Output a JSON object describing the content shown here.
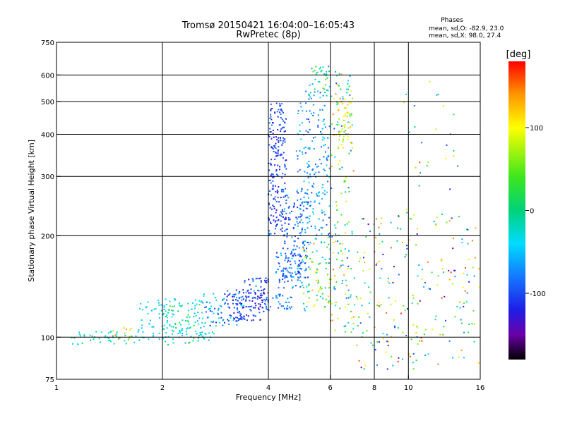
{
  "chart_data": {
    "type": "scatter",
    "title": "Tromsø 20150421 16:04:00–16:05:43",
    "subtitle": "RwPretec (8p)",
    "stats": {
      "heading": "Phases",
      "o_line": "mean, sd,O: -82.9, 23.0",
      "x_line": "mean, sd,X:  98.0, 27.4"
    },
    "xlabel": "Frequency [MHz]",
    "ylabel": "Stationary phase Virtual Height [km]",
    "x_scale": "log",
    "y_scale": "log",
    "xlim": [
      1,
      16
    ],
    "ylim": [
      75,
      750
    ],
    "x_ticks": [
      {
        "v": 1,
        "label": "1"
      },
      {
        "v": 2,
        "label": "2"
      },
      {
        "v": 4,
        "label": "4"
      },
      {
        "v": 6,
        "label": "6"
      },
      {
        "v": 8,
        "label": "8"
      },
      {
        "v": 10,
        "label": "10"
      },
      {
        "v": 16,
        "label": "16"
      }
    ],
    "y_ticks": [
      {
        "v": 75,
        "label": "75"
      },
      {
        "v": 100,
        "label": "100"
      },
      {
        "v": 200,
        "label": "200"
      },
      {
        "v": 300,
        "label": "300"
      },
      {
        "v": 400,
        "label": "400"
      },
      {
        "v": 500,
        "label": "500"
      },
      {
        "v": 600,
        "label": "600"
      },
      {
        "v": 750,
        "label": "750"
      }
    ],
    "x_grid": [
      2,
      4,
      6,
      8,
      10
    ],
    "y_grid": [
      100,
      200,
      300,
      400,
      500,
      600
    ],
    "grid": true,
    "colorbar": {
      "label": "[deg]",
      "range": [
        -180,
        180
      ],
      "ticks": [
        {
          "v": 100,
          "label": "100"
        },
        {
          "v": 0,
          "label": "0"
        },
        {
          "v": -100,
          "label": "-100"
        }
      ],
      "stops": [
        {
          "v": -180,
          "color": "#000000"
        },
        {
          "v": -150,
          "color": "#6a00a8"
        },
        {
          "v": -120,
          "color": "#1e1ee6"
        },
        {
          "v": -80,
          "color": "#1478ff"
        },
        {
          "v": -40,
          "color": "#00dcff"
        },
        {
          "v": 0,
          "color": "#00d27a"
        },
        {
          "v": 40,
          "color": "#3ce61e"
        },
        {
          "v": 100,
          "color": "#ffff00"
        },
        {
          "v": 140,
          "color": "#ff9600"
        },
        {
          "v": 180,
          "color": "#ff0000"
        }
      ]
    },
    "clusters": [
      {
        "x": [
          1.1,
          1.7
        ],
        "y": [
          95,
          104
        ],
        "phase": [
          -40,
          0
        ],
        "n": 45
      },
      {
        "x": [
          1.45,
          1.65
        ],
        "y": [
          98,
          108
        ],
        "phase": [
          60,
          150
        ],
        "n": 12
      },
      {
        "x": [
          1.7,
          2.8
        ],
        "y": [
          96,
          130
        ],
        "phase": [
          -60,
          -20
        ],
        "n": 140
      },
      {
        "x": [
          2.0,
          2.6
        ],
        "y": [
          95,
          125
        ],
        "phase": [
          -50,
          40
        ],
        "n": 40
      },
      {
        "x": [
          2.6,
          3.4
        ],
        "y": [
          108,
          135
        ],
        "phase": [
          -120,
          -20
        ],
        "n": 80
      },
      {
        "x": [
          3.0,
          3.9
        ],
        "y": [
          112,
          140
        ],
        "phase": [
          -140,
          -80
        ],
        "n": 95
      },
      {
        "x": [
          3.4,
          4.0
        ],
        "y": [
          128,
          150
        ],
        "phase": [
          -130,
          -60
        ],
        "n": 50
      },
      {
        "x": [
          3.9,
          4.7
        ],
        "y": [
          120,
          135
        ],
        "phase": [
          -100,
          -60
        ],
        "n": 40
      },
      {
        "x": [
          4.0,
          4.5
        ],
        "y": [
          200,
          500
        ],
        "phase": [
          -130,
          -80
        ],
        "n": 210
      },
      {
        "x": [
          4.4,
          5.2
        ],
        "y": [
          150,
          280
        ],
        "phase": [
          -120,
          -60
        ],
        "n": 130
      },
      {
        "x": [
          4.2,
          5.0
        ],
        "y": [
          140,
          180
        ],
        "phase": [
          -120,
          -40
        ],
        "n": 70
      },
      {
        "x": [
          4.8,
          6.0
        ],
        "y": [
          200,
          540
        ],
        "phase": [
          -100,
          -40
        ],
        "n": 190
      },
      {
        "x": [
          5.0,
          6.0
        ],
        "y": [
          120,
          200
        ],
        "phase": [
          -80,
          140
        ],
        "n": 90
      },
      {
        "x": [
          5.2,
          6.0
        ],
        "y": [
          500,
          640
        ],
        "phase": [
          -80,
          60
        ],
        "n": 40
      },
      {
        "x": [
          6.0,
          7.0
        ],
        "y": [
          100,
          620
        ],
        "phase": [
          -100,
          160
        ],
        "n": 150
      },
      {
        "x": [
          6.3,
          6.9
        ],
        "y": [
          360,
          520
        ],
        "phase": [
          60,
          140
        ],
        "n": 40
      },
      {
        "x": [
          7.0,
          16.0
        ],
        "y": [
          80,
          230
        ],
        "phase": [
          -150,
          170
        ],
        "n": 230
      },
      {
        "x": [
          9.5,
          14.0
        ],
        "y": [
          230,
          600
        ],
        "phase": [
          -120,
          170
        ],
        "n": 30
      }
    ]
  }
}
